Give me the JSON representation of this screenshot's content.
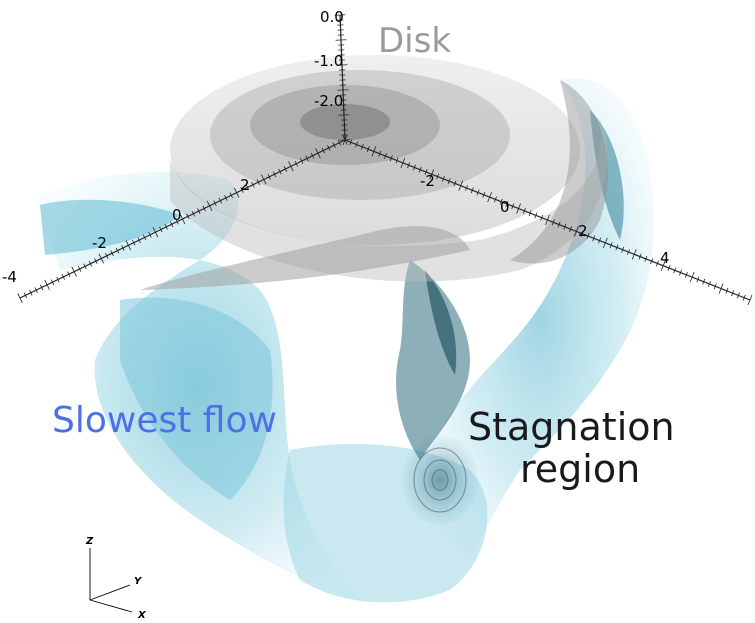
{
  "labels": {
    "disk": "Disk",
    "slowest_flow": "Slowest flow",
    "stagnation_line1": "Stagnation",
    "stagnation_line2": "region"
  },
  "axis_ticks": {
    "vertical": [
      "0.0",
      "-1.0",
      "-2.0"
    ],
    "left_axis": [
      "-4",
      "-2",
      "0",
      "2"
    ],
    "right_axis": [
      "-2",
      "0",
      "2",
      "4"
    ]
  },
  "triad": {
    "z": "Z",
    "y": "Y",
    "x": "X"
  },
  "colors": {
    "disk": "#9a9a9a",
    "slow_flow_text": "#4f6fe6",
    "flow_fill": "#6cc3d8",
    "flow_dark": "#1f6e80"
  }
}
